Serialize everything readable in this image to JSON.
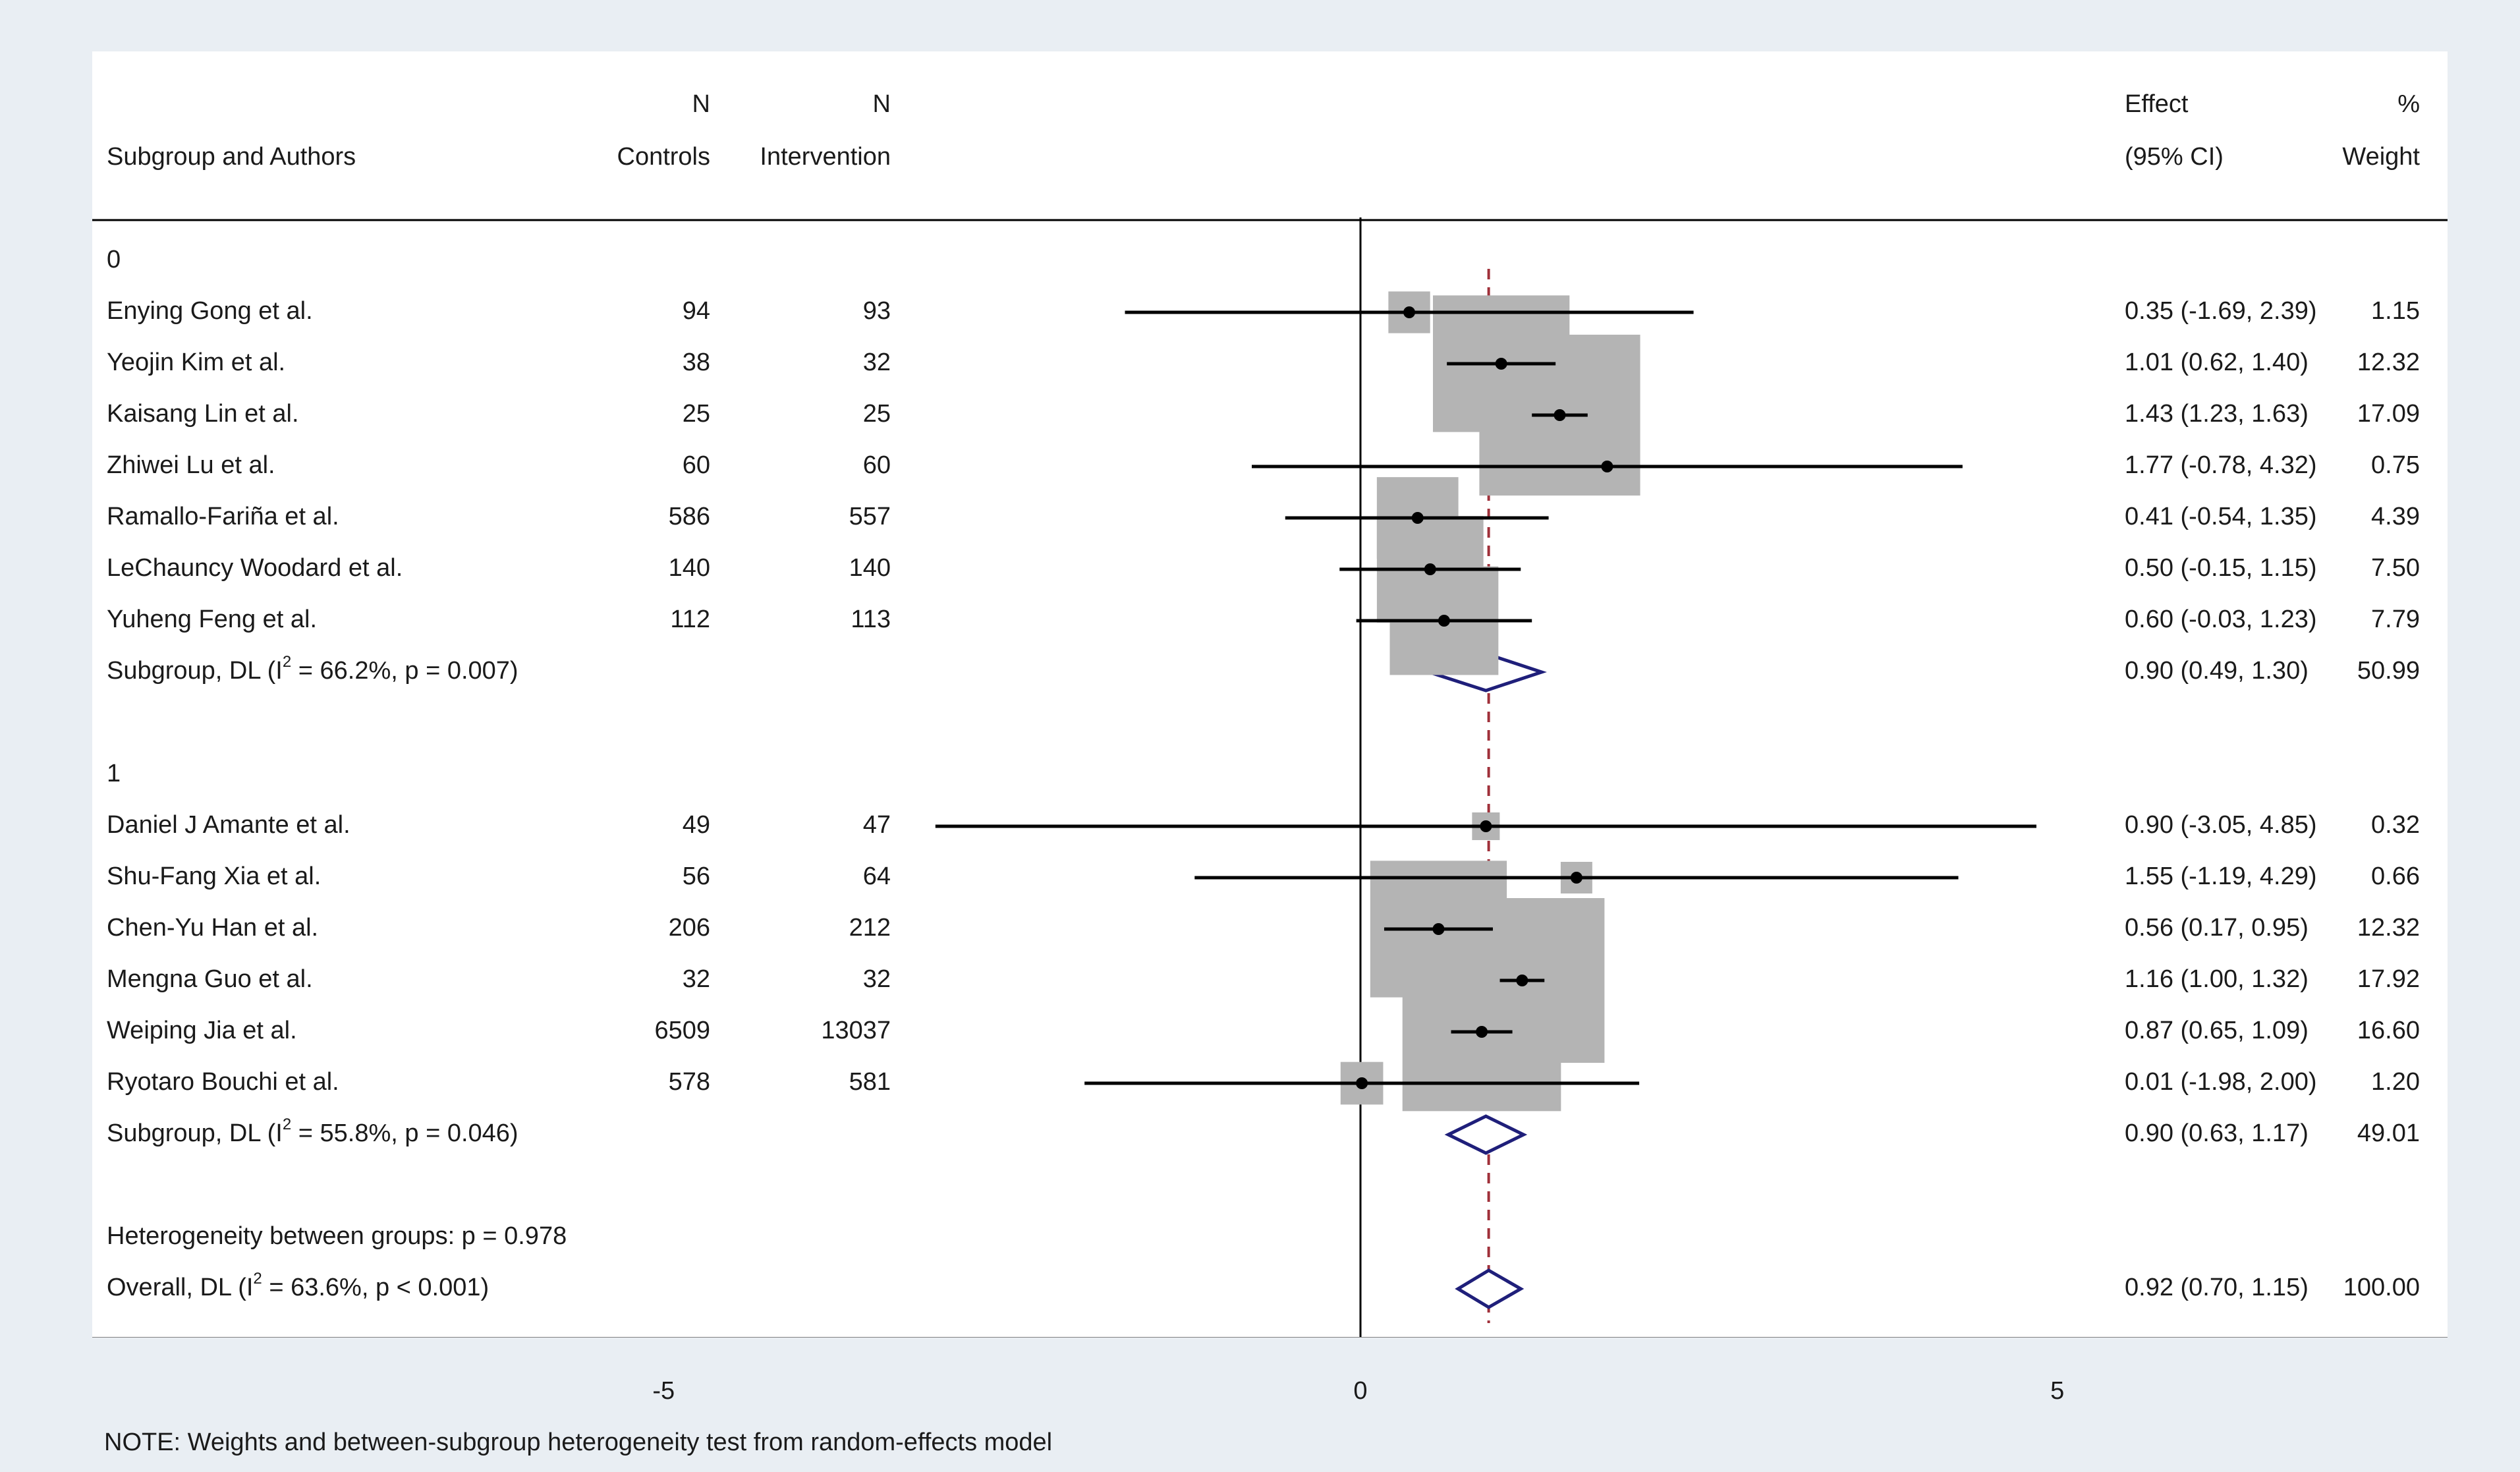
{
  "header": {
    "col_author": "Subgroup and Authors",
    "col_controls_top": "N",
    "col_controls_bottom": "Controls",
    "col_intervention_top": "N",
    "col_intervention_bottom": "Intervention",
    "col_effect_top": "Effect",
    "col_effect_bottom": "(95% CI)",
    "col_weight_top": "%",
    "col_weight_bottom": "Weight"
  },
  "note": "NOTE: Weights and between-subgroup heterogeneity test from random-effects model",
  "colors": {
    "background": "#e9eef3",
    "panel": "#ffffff",
    "weight_box": "#b4b4b4",
    "ci_line": "#000000",
    "diamond": "#1f1f7a",
    "overall_line": "#a0303a"
  },
  "chart_data": {
    "type": "forest",
    "xlim": [
      -9.1,
      7.8
    ],
    "x_ticks": [
      {
        "value": -5,
        "label": "-5"
      },
      {
        "value": 0,
        "label": "0"
      },
      {
        "value": 5,
        "label": "5"
      }
    ],
    "null_line": 0,
    "overall_effect": 0.92,
    "rows": [
      {
        "kind": "group",
        "label": "0"
      },
      {
        "kind": "study",
        "label": "Enying Gong et al.",
        "controls": "94",
        "intervention": "93",
        "est": 0.35,
        "lo": -1.69,
        "hi": 2.39,
        "weight": 1.15,
        "effect_text": "0.35 (-1.69, 2.39)",
        "weight_text": "1.15"
      },
      {
        "kind": "study",
        "label": "Yeojin Kim et al.",
        "controls": "38",
        "intervention": "32",
        "est": 1.01,
        "lo": 0.62,
        "hi": 1.4,
        "weight": 12.32,
        "effect_text": "1.01 (0.62, 1.40)",
        "weight_text": "12.32"
      },
      {
        "kind": "study",
        "label": "Kaisang Lin et al.",
        "controls": "25",
        "intervention": "25",
        "est": 1.43,
        "lo": 1.23,
        "hi": 1.63,
        "weight": 17.09,
        "effect_text": "1.43 (1.23, 1.63)",
        "weight_text": "17.09"
      },
      {
        "kind": "study",
        "label": "Zhiwei Lu et al.",
        "controls": "60",
        "intervention": "60",
        "est": 1.77,
        "lo": -0.78,
        "hi": 4.32,
        "weight": 0.75,
        "effect_text": "1.77 (-0.78, 4.32)",
        "weight_text": "0.75"
      },
      {
        "kind": "study",
        "label": "Ramallo-Fariña et al.",
        "controls": "586",
        "intervention": "557",
        "est": 0.41,
        "lo": -0.54,
        "hi": 1.35,
        "weight": 4.39,
        "effect_text": "0.41 (-0.54, 1.35)",
        "weight_text": "4.39"
      },
      {
        "kind": "study",
        "label": "LeChauncy Woodard et al.",
        "controls": "140",
        "intervention": "140",
        "est": 0.5,
        "lo": -0.15,
        "hi": 1.15,
        "weight": 7.5,
        "effect_text": "0.50 (-0.15, 1.15)",
        "weight_text": "7.50"
      },
      {
        "kind": "study",
        "label": "Yuheng Feng et al.",
        "controls": "112",
        "intervention": "113",
        "est": 0.6,
        "lo": -0.03,
        "hi": 1.23,
        "weight": 7.79,
        "effect_text": "0.60 (-0.03, 1.23)",
        "weight_text": "7.79"
      },
      {
        "kind": "subtotal",
        "label_pre": "Subgroup, DL (I",
        "label_sup": "2",
        "label_post": " = 66.2%, p = 0.007)",
        "est": 0.9,
        "lo": 0.49,
        "hi": 1.3,
        "effect_text": "0.90 (0.49, 1.30)",
        "weight_text": "50.99"
      },
      {
        "kind": "blank"
      },
      {
        "kind": "group",
        "label": "1"
      },
      {
        "kind": "study",
        "label": "Daniel J Amante et al.",
        "controls": "49",
        "intervention": "47",
        "est": 0.9,
        "lo": -3.05,
        "hi": 4.85,
        "weight": 0.32,
        "effect_text": "0.90 (-3.05, 4.85)",
        "weight_text": "0.32"
      },
      {
        "kind": "study",
        "label": "Shu-Fang Xia et al.",
        "controls": "56",
        "intervention": "64",
        "est": 1.55,
        "lo": -1.19,
        "hi": 4.29,
        "weight": 0.66,
        "effect_text": "1.55 (-1.19, 4.29)",
        "weight_text": "0.66"
      },
      {
        "kind": "study",
        "label": "Chen-Yu Han et al.",
        "controls": "206",
        "intervention": "212",
        "est": 0.56,
        "lo": 0.17,
        "hi": 0.95,
        "weight": 12.32,
        "effect_text": "0.56 (0.17, 0.95)",
        "weight_text": "12.32"
      },
      {
        "kind": "study",
        "label": "Mengna Guo et al.",
        "controls": "32",
        "intervention": "32",
        "est": 1.16,
        "lo": 1.0,
        "hi": 1.32,
        "weight": 17.92,
        "effect_text": "1.16 (1.00, 1.32)",
        "weight_text": "17.92"
      },
      {
        "kind": "study",
        "label": "Weiping Jia et al.",
        "controls": "6509",
        "intervention": "13037",
        "est": 0.87,
        "lo": 0.65,
        "hi": 1.09,
        "weight": 16.6,
        "effect_text": "0.87 (0.65, 1.09)",
        "weight_text": "16.60"
      },
      {
        "kind": "study",
        "label": "Ryotaro Bouchi et al.",
        "controls": "578",
        "intervention": "581",
        "est": 0.01,
        "lo": -1.98,
        "hi": 2.0,
        "weight": 1.2,
        "effect_text": "0.01 (-1.98, 2.00)",
        "weight_text": "1.20"
      },
      {
        "kind": "subtotal",
        "label_pre": "Subgroup, DL (I",
        "label_sup": "2",
        "label_post": " = 55.8%, p = 0.046)",
        "est": 0.9,
        "lo": 0.63,
        "hi": 1.17,
        "effect_text": "0.90 (0.63, 1.17)",
        "weight_text": "49.01"
      },
      {
        "kind": "blank"
      },
      {
        "kind": "text",
        "label": "Heterogeneity between groups: p = 0.978"
      },
      {
        "kind": "overall",
        "label_pre": "Overall, DL (I",
        "label_sup": "2",
        "label_post": " = 63.6%, p < 0.001)",
        "est": 0.92,
        "lo": 0.7,
        "hi": 1.15,
        "effect_text": "0.92 (0.70, 1.15)",
        "weight_text": "100.00"
      }
    ]
  }
}
